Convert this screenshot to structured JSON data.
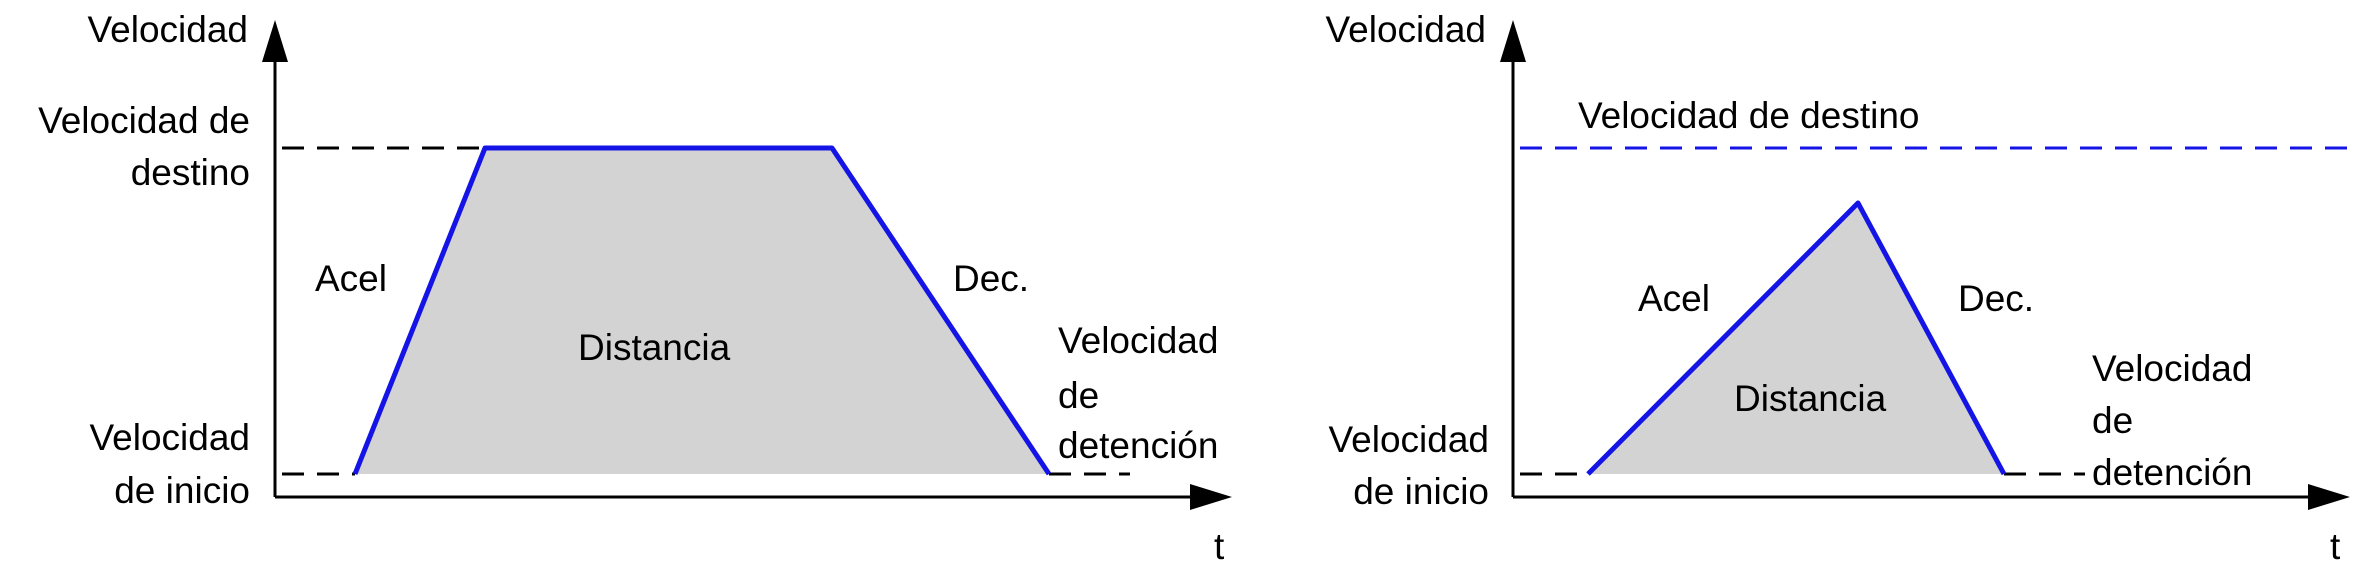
{
  "colors": {
    "profile": "#1414E6",
    "area_fill": "#D3D3D3",
    "target_line_left": "#000000",
    "target_line_right": "#1414E6",
    "axes": "#000000"
  },
  "left": {
    "y_axis_label": "Velocidad",
    "x_axis_label": "t",
    "target_speed_label_line1": "Velocidad de",
    "target_speed_label_line2": "destino",
    "start_speed_label_line1": "Velocidad",
    "start_speed_label_line2": "de inicio",
    "accel_label": "Acel",
    "decel_label": "Dec.",
    "area_label": "Distancia",
    "stop_speed_label_line1": "Velocidad",
    "stop_speed_label_line2": "de",
    "stop_speed_label_line3": "detención",
    "profile_shape": "trapezoidal"
  },
  "right": {
    "y_axis_label": "Velocidad",
    "x_axis_label": "t",
    "target_speed_label": "Velocidad de destino",
    "start_speed_label_line1": "Velocidad",
    "start_speed_label_line2": "de inicio",
    "accel_label": "Acel",
    "decel_label": "Dec.",
    "area_label": "Distancia",
    "stop_speed_label_line1": "Velocidad",
    "stop_speed_label_line2": "de",
    "stop_speed_label_line3": "detención",
    "profile_shape": "triangular"
  }
}
